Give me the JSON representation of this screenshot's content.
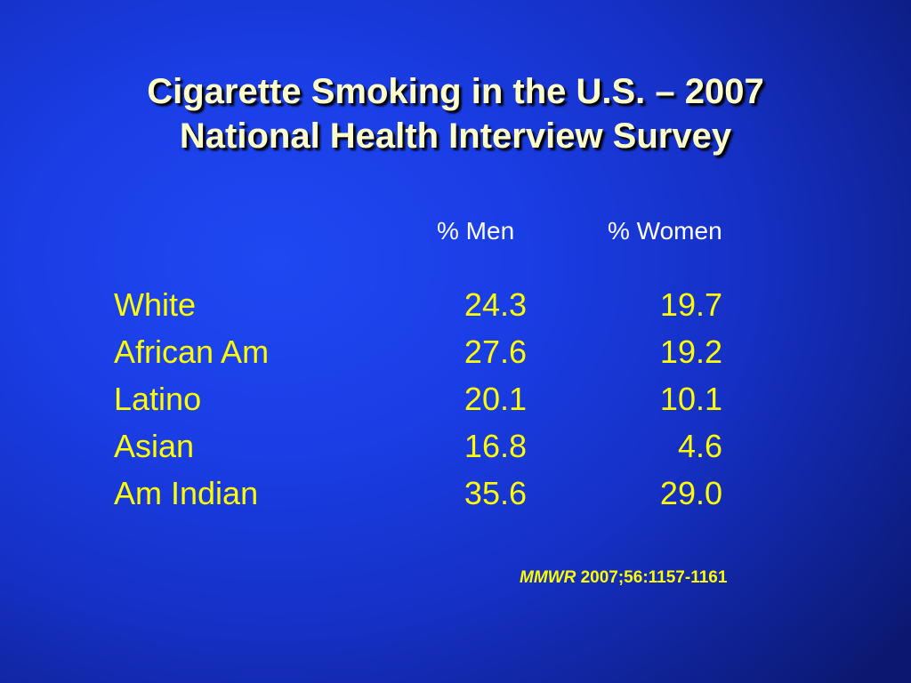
{
  "title": {
    "line1": "Cigarette Smoking in the U.S. – 2007",
    "line2": "National Health Interview Survey"
  },
  "table": {
    "headers": {
      "men": "% Men",
      "women": "% Women"
    },
    "rows": [
      {
        "group": "White",
        "men": "24.3",
        "women": "19.7"
      },
      {
        "group": "African Am",
        "men": "27.6",
        "women": "19.2"
      },
      {
        "group": "Latino",
        "men": "20.1",
        "women": "10.1"
      },
      {
        "group": "Asian",
        "men": "16.8",
        "women": "4.6"
      },
      {
        "group": "Am Indian",
        "men": "35.6",
        "women": "29.0"
      }
    ]
  },
  "citation": {
    "journal": "MMWR",
    "reference": " 2007;56:1157-1161"
  },
  "colors": {
    "background": "#1a3ee6",
    "title_text": "#ffffcc",
    "header_text": "#ffffff",
    "body_text": "#ffff00"
  }
}
